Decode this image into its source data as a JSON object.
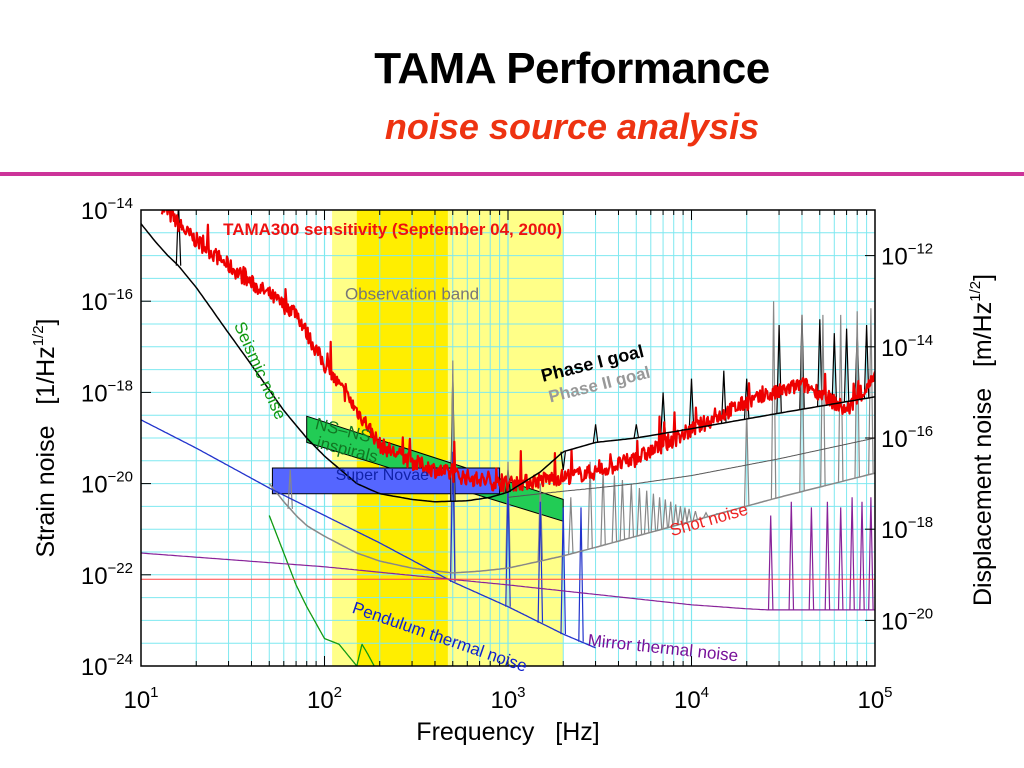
{
  "slide": {
    "title": "TAMA Performance",
    "subtitle": "noise source analysis",
    "rule_color": "#cc3399"
  },
  "chart_data": {
    "type": "line",
    "x_scale": "log",
    "y_scale": "log",
    "xlabel": "Frequency   [Hz]",
    "ylabel": "Strain noise   [1/Hz",
    "ylabel_sup": "1/2",
    "ylabel_close": "]",
    "y2label": "Displacement noise   [m/Hz",
    "y2label_sup": "1/2",
    "y2label_close": "]",
    "xlim": [
      10,
      100000
    ],
    "ylim": [
      1e-24,
      1e-14
    ],
    "y2lim": [
      1e-21,
      1e-11
    ],
    "grid": true,
    "x_ticks": [
      {
        "value": 10,
        "base": "10",
        "exp": "1"
      },
      {
        "value": 100,
        "base": "10",
        "exp": "2"
      },
      {
        "value": 1000,
        "base": "10",
        "exp": "3"
      },
      {
        "value": 10000,
        "base": "10",
        "exp": "4"
      },
      {
        "value": 100000,
        "base": "10",
        "exp": "5"
      }
    ],
    "y_ticks": [
      {
        "value": 1e-14,
        "base": "10",
        "exp": "−14"
      },
      {
        "value": 1e-16,
        "base": "10",
        "exp": "−16"
      },
      {
        "value": 1e-18,
        "base": "10",
        "exp": "−18"
      },
      {
        "value": 1e-20,
        "base": "10",
        "exp": "−20"
      },
      {
        "value": 1e-22,
        "base": "10",
        "exp": "−22"
      },
      {
        "value": 1e-24,
        "base": "10",
        "exp": "−24"
      }
    ],
    "y2_ticks": [
      {
        "value": 1e-12,
        "base": "10",
        "exp": "−12"
      },
      {
        "value": 1e-14,
        "base": "10",
        "exp": "−14"
      },
      {
        "value": 1e-16,
        "base": "10",
        "exp": "−16"
      },
      {
        "value": 1e-18,
        "base": "10",
        "exp": "−18"
      },
      {
        "value": 1e-20,
        "base": "10",
        "exp": "−20"
      }
    ],
    "bands": [
      {
        "label": "Observation band",
        "x_range": [
          110,
          2000
        ],
        "color": "#ffff88",
        "label_at": [
          300,
          1.1e-16
        ]
      },
      {
        "label": "",
        "x_range": [
          150,
          470
        ],
        "color": "#ffee00"
      }
    ],
    "regions": [
      {
        "label": "NS–NS\ninspirals",
        "color": "#22cc55",
        "text_color": "#117722",
        "points": [
          [
            80,
            3e-19
          ],
          [
            2000,
            4.5e-21
          ],
          [
            2000,
            1.5e-21
          ],
          [
            80,
            8e-20
          ]
        ],
        "label_at": [
          88,
          1.6e-19
        ]
      },
      {
        "label": "Super Novae",
        "color": "#5566ff",
        "text_color": "#1122aa",
        "points": [
          [
            52,
            2.2e-20
          ],
          [
            900,
            2.2e-20
          ],
          [
            900,
            6e-21
          ],
          [
            52,
            6e-21
          ]
        ],
        "label_at": [
          420,
          1.1e-20
        ]
      }
    ],
    "series": [
      {
        "name": "TAMA300 sensitivity (September 04, 2000)",
        "color": "#ee0000",
        "width": 2.2,
        "noisy": true,
        "x": [
          13,
          18,
          22,
          30,
          40,
          50,
          60,
          70,
          80,
          100,
          130,
          170,
          200,
          300,
          400,
          500,
          700,
          900,
          1000,
          1200,
          1500,
          2000,
          3000,
          5000,
          7000,
          10000,
          15000,
          20000,
          30000,
          40000,
          50000,
          70000,
          100000
        ],
        "y": [
          1.2e-14,
          3e-15,
          1.6e-15,
          6e-16,
          2.5e-16,
          1.4e-16,
          8e-17,
          6e-17,
          2e-17,
          4e-18,
          9e-19,
          2e-19,
          7e-20,
          3e-20,
          2e-20,
          1.6e-20,
          1.2e-20,
          1e-20,
          1e-20,
          1.05e-20,
          1.2e-20,
          1.4e-20,
          1.8e-20,
          3.5e-20,
          7e-20,
          1.5e-19,
          3.5e-19,
          6e-19,
          1e-18,
          1.5e-18,
          1e-18,
          4e-19,
          2e-18
        ]
      },
      {
        "name": "Phase I goal",
        "color": "#000000",
        "width": 1.5,
        "x": [
          10,
          12,
          14,
          16,
          20,
          30,
          40,
          60,
          80,
          100,
          150,
          200,
          300,
          400,
          600,
          800,
          1000,
          1500,
          2000,
          3000,
          5000,
          10000,
          30000,
          100000
        ],
        "y": [
          5e-15,
          2e-15,
          1e-15,
          6e-16,
          2e-16,
          2e-17,
          4e-18,
          4e-19,
          1e-19,
          4e-20,
          1e-20,
          6e-21,
          4.5e-21,
          4e-21,
          4.2e-21,
          5e-21,
          6.5e-21,
          1.8e-20,
          5e-20,
          8e-20,
          1e-19,
          1.6e-19,
          3.5e-19,
          8e-19
        ]
      },
      {
        "name": "Phase II goal",
        "color": "#888888",
        "width": 1.5,
        "x": [
          50,
          60,
          70,
          80,
          100,
          150,
          200,
          300,
          500,
          700,
          1000,
          1500,
          2000,
          3000,
          5000,
          10000,
          30000,
          100000
        ],
        "y": [
          1e-20,
          4e-21,
          2e-21,
          1.2e-21,
          7e-22,
          3e-22,
          2e-22,
          1.4e-22,
          1.1e-22,
          1.2e-22,
          1.4e-22,
          2e-22,
          2.6e-22,
          4e-22,
          7e-22,
          1.5e-21,
          5e-21,
          1.7e-20
        ]
      },
      {
        "name": "Shot noise",
        "color": "#555555",
        "width": 1,
        "x": [
          1000,
          1500,
          2000,
          3000,
          5000,
          10000,
          30000,
          100000
        ],
        "y": [
          5e-21,
          6e-21,
          6.8e-21,
          8e-21,
          1e-20,
          1.5e-20,
          3.5e-20,
          1e-19
        ]
      },
      {
        "name": "Seismic noise",
        "color": "#119911",
        "width": 1.3,
        "x": [
          50,
          60,
          70,
          80,
          100,
          120,
          150,
          160,
          170,
          200
        ],
        "y": [
          2e-21,
          3e-22,
          6e-23,
          2e-23,
          4e-24,
          3e-24,
          1e-24,
          3e-24,
          2e-24,
          6e-25
        ]
      },
      {
        "name": "Pendulum thermal noise",
        "color": "#2233cc",
        "width": 1.3,
        "x": [
          10,
          20,
          50,
          100,
          200,
          500,
          1000,
          2000,
          3000
        ],
        "y": [
          2.5e-19,
          6e-20,
          8e-21,
          2e-21,
          5e-22,
          7e-23,
          2e-23,
          5e-24,
          2.5e-24
        ]
      },
      {
        "name": "Mirror thermal noise",
        "color": "#882299",
        "width": 1.2,
        "x": [
          10,
          100,
          1000,
          10000,
          20000,
          26000,
          100000
        ],
        "y": [
          3e-22,
          1.5e-22,
          6e-23,
          2.2e-23,
          1.8e-23,
          1.7e-23,
          1.7e-23
        ]
      },
      {
        "name": "",
        "color": "#ff4444",
        "width": 1,
        "x": [
          10,
          100000
        ],
        "y": [
          8e-23,
          8e-23
        ]
      }
    ],
    "peak_sets": [
      {
        "color": "#000000",
        "base_series": "Phase I goal",
        "x": [
          16,
          500,
          1000,
          2000,
          3000,
          5000,
          7000,
          10000,
          15000,
          20000,
          30000,
          40000,
          50000,
          60000,
          70000,
          80000,
          90000
        ],
        "top": [
          1.5e-14,
          2.5e-18,
          2e-20,
          2e-20,
          2e-19,
          2e-19,
          1e-18,
          2e-18,
          3e-18,
          2e-18,
          3e-17,
          5e-17,
          4e-17,
          2e-17,
          2.5e-17,
          2e-17,
          3e-17
        ]
      },
      {
        "color": "#888888",
        "base_series": "Phase II goal",
        "x": [
          65,
          500,
          1000,
          1500,
          2200,
          2800,
          3300,
          3800,
          4200,
          4700,
          5200,
          5700,
          6200,
          6700,
          7200,
          7700,
          8200,
          8700,
          9200,
          9700,
          10500,
          12000,
          14000,
          16000,
          20000,
          28000,
          40000,
          52000,
          65000,
          80000,
          95000
        ],
        "top": [
          2e-20,
          5e-18,
          3e-20,
          1e-20,
          5e-21,
          3e-20,
          2e-20,
          1.5e-20,
          1.2e-20,
          1e-20,
          8e-21,
          7e-21,
          6e-21,
          5e-21,
          4.5e-21,
          4e-21,
          3.5e-21,
          3.2e-21,
          3e-21,
          2.8e-21,
          2.5e-21,
          2.3e-21,
          2.2e-21,
          2.5e-21,
          4e-19,
          1e-16,
          5e-17,
          5e-17,
          5e-17,
          6e-17,
          7e-17
        ]
      },
      {
        "color": "#2233cc",
        "base_series": "Pendulum thermal noise",
        "x": [
          500,
          1000,
          1500,
          2000,
          2500
        ],
        "top": [
          5e-20,
          1e-20,
          4e-21,
          3e-21,
          3e-21
        ]
      },
      {
        "color": "#882299",
        "base_series": "Mirror thermal noise",
        "x": [
          27000,
          35000,
          45000,
          55000,
          65000,
          75000,
          85000,
          95000
        ],
        "top": [
          2e-21,
          4e-21,
          3e-21,
          4e-21,
          3e-21,
          5e-21,
          4e-21,
          5e-21
        ]
      }
    ],
    "annotations": [
      {
        "text": "TAMA300 sensitivity (September 04, 2000)",
        "color": "#ee1111",
        "at": [
          28,
          2.8e-15
        ],
        "rotate": 0,
        "size": 17,
        "bold": true
      },
      {
        "text": "Phase I goal",
        "color": "#000000",
        "at": [
          1550,
          1.7e-18
        ],
        "rotate": -14,
        "size": 18,
        "bold": true
      },
      {
        "text": "Phase II goal",
        "color": "#999999",
        "at": [
          1700,
          6e-19
        ],
        "rotate": -14,
        "size": 17,
        "bold": true
      },
      {
        "text": "Seismic noise",
        "color": "#119911",
        "at": [
          32,
          3e-17
        ],
        "rotate": 66,
        "size": 17,
        "bold": false
      },
      {
        "text": "Super Novae",
        "color": "#1122aa",
        "at": [
          115,
          1.2e-20
        ],
        "rotate": 0,
        "size": 16,
        "bold": false
      },
      {
        "text": "Shot noise",
        "color": "#ee2222",
        "at": [
          7800,
          7e-22
        ],
        "rotate": -16,
        "size": 17,
        "bold": false
      },
      {
        "text": "Pendulum thermal noise",
        "color": "#1122cc",
        "at": [
          140,
          1.5e-23
        ],
        "rotate": 19,
        "size": 17,
        "bold": false
      },
      {
        "text": "Mirror thermal noise",
        "color": "#771199",
        "at": [
          2700,
          2.8e-24
        ],
        "rotate": 6,
        "size": 17,
        "bold": false
      }
    ]
  }
}
